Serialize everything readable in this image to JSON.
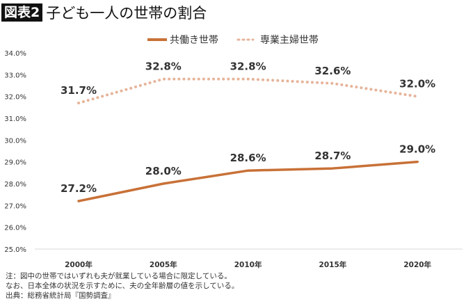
{
  "header": {
    "badge": "図表2",
    "title": "子ども一人の世帯の割合"
  },
  "chart_data": {
    "type": "line",
    "title": "子ども一人の世帯の割合",
    "categories": [
      "2000年",
      "2005年",
      "2010年",
      "2015年",
      "2020年"
    ],
    "ylim": [
      25.0,
      34.0
    ],
    "yticks": [
      "25.0%",
      "26.0%",
      "27.0%",
      "28.0%",
      "29.0%",
      "30.0%",
      "31.0%",
      "32.0%",
      "33.0%",
      "34.0%"
    ],
    "grid": false,
    "legend_position": "top",
    "series": [
      {
        "name": "共働き世帯",
        "values": [
          27.2,
          28.0,
          28.6,
          28.7,
          29.0
        ],
        "labels": [
          "27.2%",
          "28.0%",
          "28.6%",
          "28.7%",
          "29.0%"
        ],
        "color": "#C87137",
        "style": "solid"
      },
      {
        "name": "専業主婦世帯",
        "values": [
          31.7,
          32.8,
          32.8,
          32.6,
          32.0
        ],
        "labels": [
          "31.7%",
          "32.8%",
          "32.8%",
          "32.6%",
          "32.0%"
        ],
        "color": "#E6B49A",
        "style": "dotted"
      }
    ]
  },
  "notes": [
    "注：図中の世帯ではいずれも夫が就業している場合に限定している。",
    "なお、日本全体の状況を示すために、夫の全年齢層の値を示している。",
    "出典：総務省統計局『国勢調査』"
  ]
}
